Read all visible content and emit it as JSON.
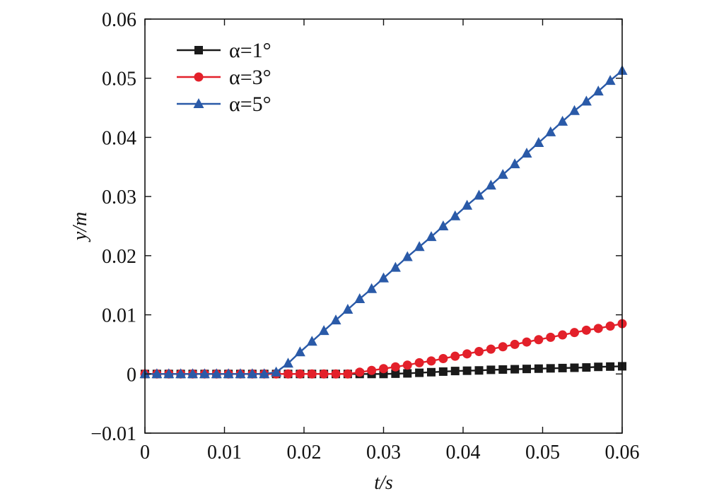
{
  "chart_data": {
    "type": "line",
    "title": "",
    "xlabel": "t/s",
    "ylabel": "y/m",
    "xlim": [
      0,
      0.06
    ],
    "ylim": [
      -0.01,
      0.06
    ],
    "xticks": [
      0,
      0.01,
      0.02,
      0.03,
      0.04,
      0.05,
      0.06
    ],
    "yticks": [
      -0.01,
      0,
      0.01,
      0.02,
      0.03,
      0.04,
      0.05,
      0.06
    ],
    "xtick_labels": [
      "0",
      "0.01",
      "0.02",
      "0.03",
      "0.04",
      "0.05",
      "0.06"
    ],
    "ytick_labels": [
      "−0.01",
      "0",
      "0.01",
      "0.02",
      "0.03",
      "0.04",
      "0.05",
      "0.06"
    ],
    "grid": false,
    "legend_position": "top-left",
    "x": [
      0,
      0.0015,
      0.003,
      0.0045,
      0.006,
      0.0075,
      0.009,
      0.0105,
      0.012,
      0.0135,
      0.015,
      0.0165,
      0.018,
      0.0195,
      0.021,
      0.0225,
      0.024,
      0.0255,
      0.027,
      0.0285,
      0.03,
      0.0315,
      0.033,
      0.0345,
      0.036,
      0.0375,
      0.039,
      0.0405,
      0.042,
      0.0435,
      0.045,
      0.0465,
      0.048,
      0.0495,
      0.051,
      0.0525,
      0.054,
      0.0555,
      0.057,
      0.0585,
      0.06
    ],
    "series": [
      {
        "name": "α=1°",
        "color": "#1a1a1a",
        "marker": "square",
        "values": [
          0,
          0,
          0,
          0,
          0,
          0,
          0,
          0,
          0,
          0,
          0,
          0,
          0,
          0,
          0,
          0,
          0,
          0,
          0,
          0,
          0,
          5e-05,
          0.0001,
          0.0002,
          0.0003,
          0.0004,
          0.0005,
          0.00055,
          0.0006,
          0.0007,
          0.00075,
          0.0008,
          0.00085,
          0.0009,
          0.00095,
          0.001,
          0.00105,
          0.0011,
          0.0012,
          0.00125,
          0.0013
        ]
      },
      {
        "name": "α=3°",
        "color": "#e3202a",
        "marker": "circle",
        "values": [
          0,
          0,
          0,
          0,
          0,
          0,
          0,
          0,
          0,
          0,
          0,
          0,
          0,
          0,
          0,
          0,
          0,
          0,
          0.0003,
          0.0006,
          0.0009,
          0.0012,
          0.0015,
          0.0019,
          0.0022,
          0.0026,
          0.003,
          0.0034,
          0.0038,
          0.0042,
          0.0046,
          0.005,
          0.0054,
          0.0058,
          0.0062,
          0.0066,
          0.007,
          0.0074,
          0.0077,
          0.0081,
          0.0085
        ]
      },
      {
        "name": "α=5°",
        "color": "#2a5aa8",
        "marker": "triangle",
        "values": [
          0,
          0,
          0,
          0,
          0,
          0,
          0,
          0,
          0,
          0,
          0,
          0.0003,
          0.0018,
          0.0037,
          0.0055,
          0.0073,
          0.0091,
          0.0109,
          0.0127,
          0.0144,
          0.0162,
          0.018,
          0.0198,
          0.0215,
          0.0232,
          0.025,
          0.0267,
          0.0285,
          0.0302,
          0.0319,
          0.0337,
          0.0355,
          0.0373,
          0.0391,
          0.0409,
          0.0427,
          0.0445,
          0.0461,
          0.0478,
          0.0496,
          0.0513
        ]
      }
    ]
  }
}
